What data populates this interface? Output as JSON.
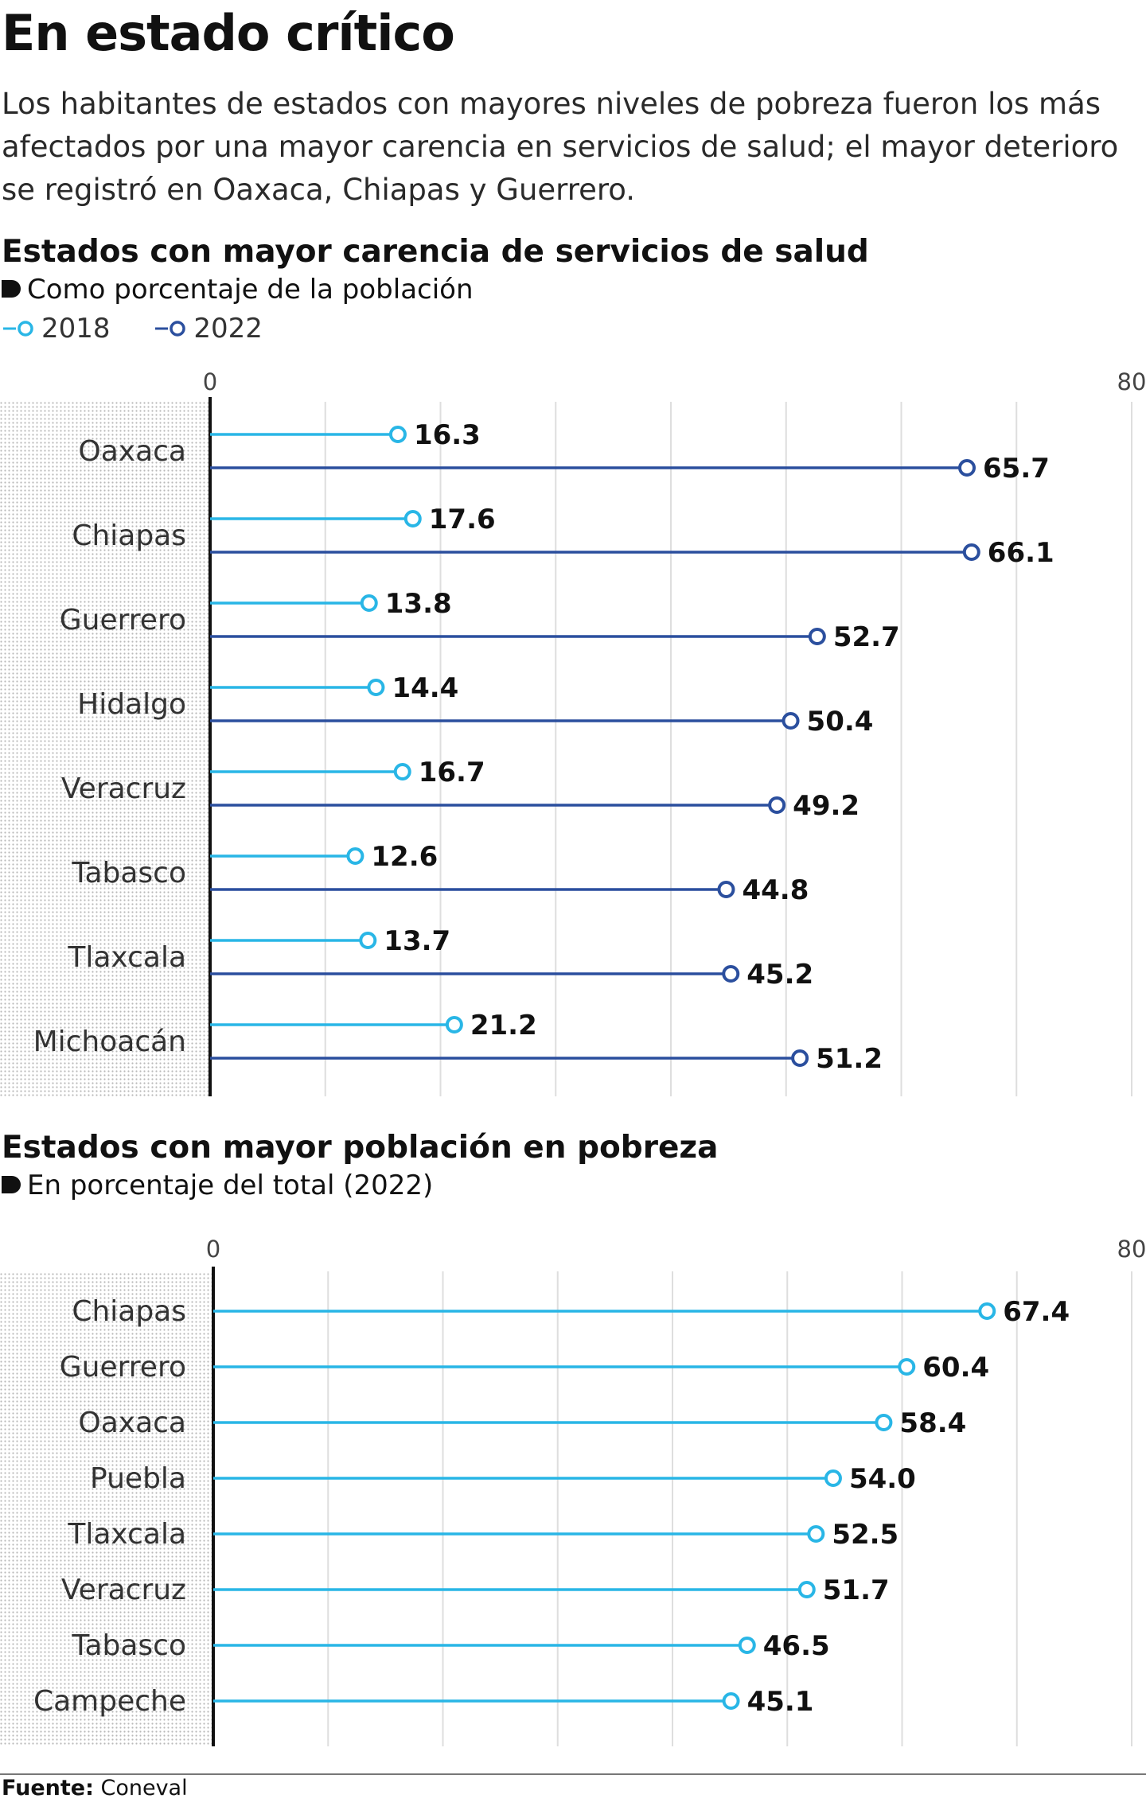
{
  "title": "En estado crítico",
  "description": "Los habitantes de estados con mayores niveles de pobreza fueron los más afectados por una mayor carencia en servicios de salud; el mayor deterioro se registró en Oaxaca, Chiapas y Guerrero.",
  "colors": {
    "series_2018": "#29b6e6",
    "series_2022": "#2b4f9e",
    "dots": "#b9b9b9",
    "axis": "#111111"
  },
  "chart_data": [
    {
      "type": "bar",
      "title": "Estados con mayor carencia de servicios de salud",
      "subtitle": "Como porcentaje de la población",
      "categories": [
        "Oaxaca",
        "Chiapas",
        "Guerrero",
        "Hidalgo",
        "Veracruz",
        "Tabasco",
        "Tlaxcala",
        "Michoacán"
      ],
      "series": [
        {
          "name": "2018",
          "values": [
            16.3,
            17.6,
            13.8,
            14.4,
            16.7,
            12.6,
            13.7,
            21.2
          ]
        },
        {
          "name": "2022",
          "values": [
            65.7,
            66.1,
            52.7,
            50.4,
            49.2,
            44.8,
            45.2,
            51.2
          ]
        }
      ],
      "value_labels": [
        [
          "16.3",
          "17.6",
          "13.8",
          "14.4",
          "16.7",
          "12.6",
          "13.7",
          "21.2"
        ],
        [
          "65.7",
          "66.1",
          "52.7",
          "50.4",
          "49.2",
          "44.8",
          "45.2",
          "51.2"
        ]
      ],
      "tick_labels": [
        "0",
        "80"
      ],
      "xlim": [
        0,
        80
      ],
      "grid": true,
      "legend": "top-left"
    },
    {
      "type": "bar",
      "title": "Estados con mayor población en pobreza",
      "subtitle": "En porcentaje del total (2022)",
      "categories": [
        "Chiapas",
        "Guerrero",
        "Oaxaca",
        "Puebla",
        "Tlaxcala",
        "Veracruz",
        "Tabasco",
        "Campeche"
      ],
      "series": [
        {
          "values": [
            67.4,
            60.4,
            58.4,
            54.0,
            52.5,
            51.7,
            46.5,
            45.1
          ]
        }
      ],
      "value_labels": [
        "67.4",
        "60.4",
        "58.4",
        "54.0",
        "52.5",
        "51.7",
        "46.5",
        "45.1"
      ],
      "tick_labels": [
        "0",
        "80"
      ],
      "xlim": [
        0,
        80
      ],
      "grid": true
    }
  ],
  "source": {
    "label": "Fuente:",
    "text": "Coneval"
  }
}
